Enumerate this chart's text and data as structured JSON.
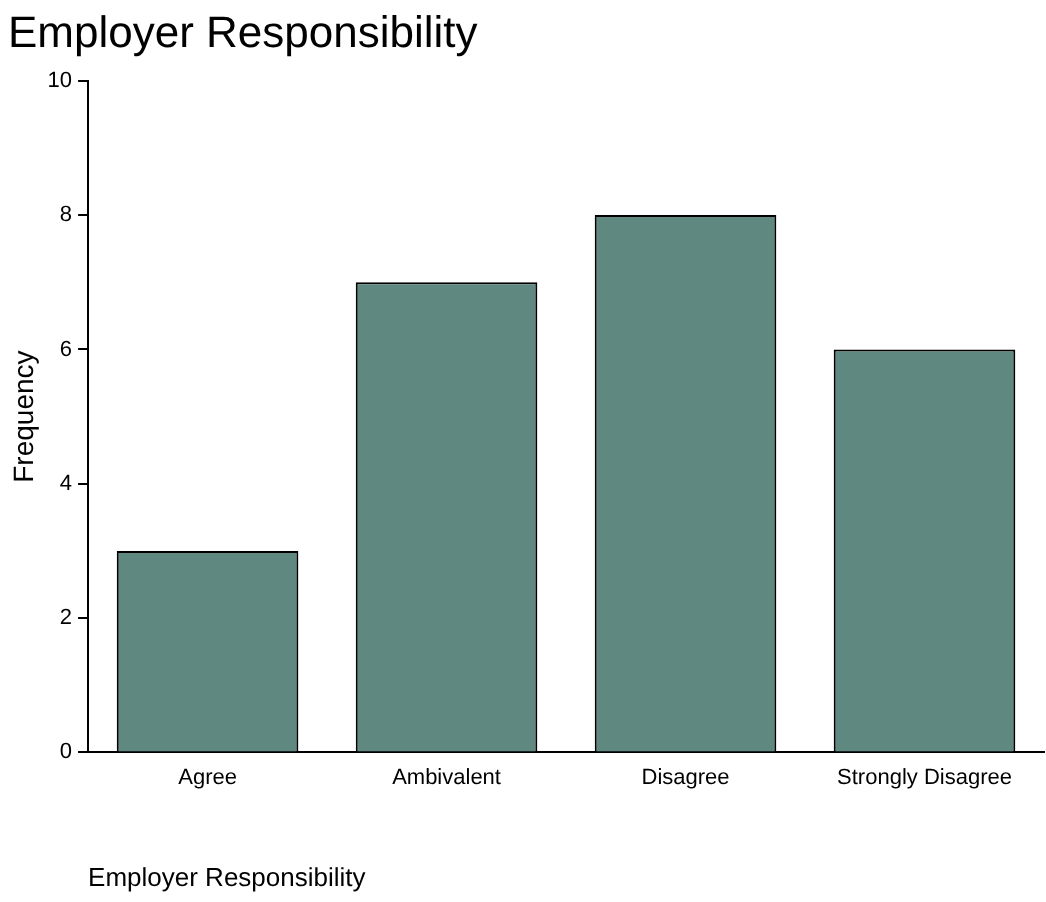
{
  "chart_data": {
    "type": "bar",
    "title": "Employer Responsibility",
    "xlabel": "Employer Responsibility",
    "ylabel": "Frequency",
    "categories": [
      "Agree",
      "Ambivalent",
      "Disagree",
      "Strongly Disagree"
    ],
    "values": [
      3,
      7,
      8,
      6
    ],
    "color": "#5f8880",
    "ylim": [
      0,
      10
    ],
    "yticks": [
      0,
      2,
      4,
      6,
      8,
      10
    ],
    "grid": false,
    "legend": false
  }
}
